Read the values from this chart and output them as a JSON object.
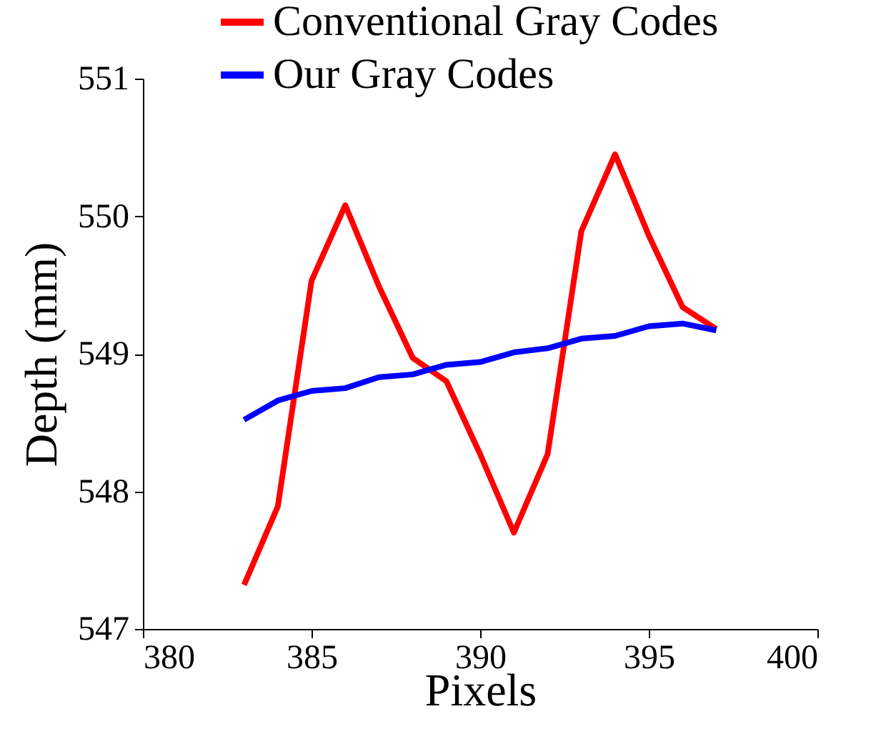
{
  "chart_data": {
    "type": "line",
    "xlabel": "Pixels",
    "ylabel": "Depth (mm)",
    "x": [
      383,
      384,
      385,
      386,
      387,
      388,
      389,
      390,
      391,
      392,
      393,
      394,
      395,
      396,
      397
    ],
    "series": [
      {
        "name": "Conventional Gray Codes",
        "color": "#ff0000",
        "values": [
          547.32,
          547.89,
          549.53,
          550.08,
          549.49,
          548.97,
          548.8,
          548.27,
          547.7,
          548.27,
          549.89,
          550.45,
          549.86,
          549.34,
          549.18
        ]
      },
      {
        "name": "Our Gray Codes",
        "color": "#0000ff",
        "values": [
          548.52,
          548.66,
          548.73,
          548.75,
          548.83,
          548.85,
          548.92,
          548.94,
          549.01,
          549.04,
          549.11,
          549.13,
          549.2,
          549.22,
          549.17
        ]
      }
    ],
    "xlim": [
      380,
      400
    ],
    "xticks": [
      380,
      385,
      390,
      395,
      400
    ],
    "ylim": [
      547,
      551
    ],
    "yticks": [
      547,
      548,
      549,
      550,
      551
    ],
    "grid": false,
    "legend": "top",
    "marker": "none",
    "line_style": "solid"
  }
}
